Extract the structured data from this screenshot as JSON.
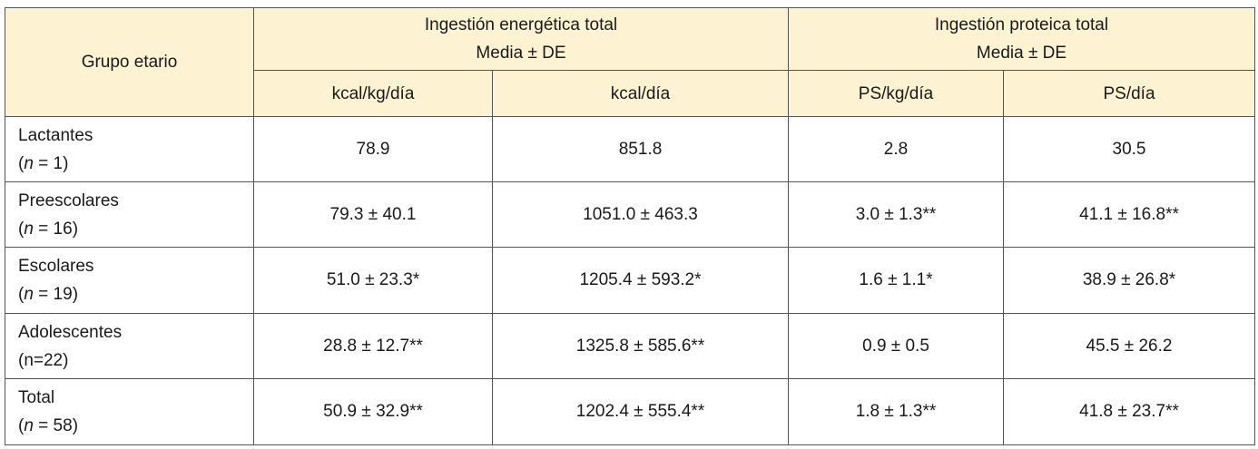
{
  "header": {
    "group_col": "Grupo etario",
    "energy": {
      "title": "Ingestión energética total",
      "subtitle": "Media ± DE",
      "sub_cols": [
        "kcal/kg/día",
        "kcal/día"
      ]
    },
    "protein": {
      "title": "Ingestión proteica total",
      "subtitle": "Media ± DE",
      "sub_cols": [
        "PS/kg/día",
        "PS/día"
      ]
    }
  },
  "rows": [
    {
      "group": "Lactantes",
      "n_prefix": "(",
      "n_var": "n",
      "n_suffix": " = 1)",
      "values": [
        "78.9",
        "851.8",
        "2.8",
        "30.5"
      ]
    },
    {
      "group": "Preescolares",
      "n_prefix": "(",
      "n_var": "n",
      "n_suffix": " = 16)",
      "values": [
        "79.3 ± 40.1",
        "1051.0 ± 463.3",
        "3.0 ± 1.3**",
        "41.1 ± 16.8**"
      ]
    },
    {
      "group": "Escolares",
      "n_prefix": "(",
      "n_var": "n",
      "n_suffix": " = 19)",
      "values": [
        "51.0 ± 23.3*",
        "1205.4 ± 593.2*",
        "1.6 ± 1.1*",
        "38.9 ± 26.8*"
      ]
    },
    {
      "group": "Adolescentes",
      "n_text": "(n=22)",
      "values": [
        "28.8 ± 12.7**",
        "1325.8 ± 585.6**",
        "0.9 ± 0.5",
        "45.5 ± 26.2"
      ]
    },
    {
      "group": "Total",
      "n_prefix": "(",
      "n_var": "n",
      "n_suffix": " = 58)",
      "values": [
        "50.9 ± 32.9**",
        "1202.4 ± 555.4**",
        "1.8 ± 1.3**",
        "41.8 ± 23.7**"
      ]
    }
  ],
  "colors": {
    "header_bg": "#fdf3d2",
    "border": "#555555",
    "text": "#1a1a1a"
  }
}
